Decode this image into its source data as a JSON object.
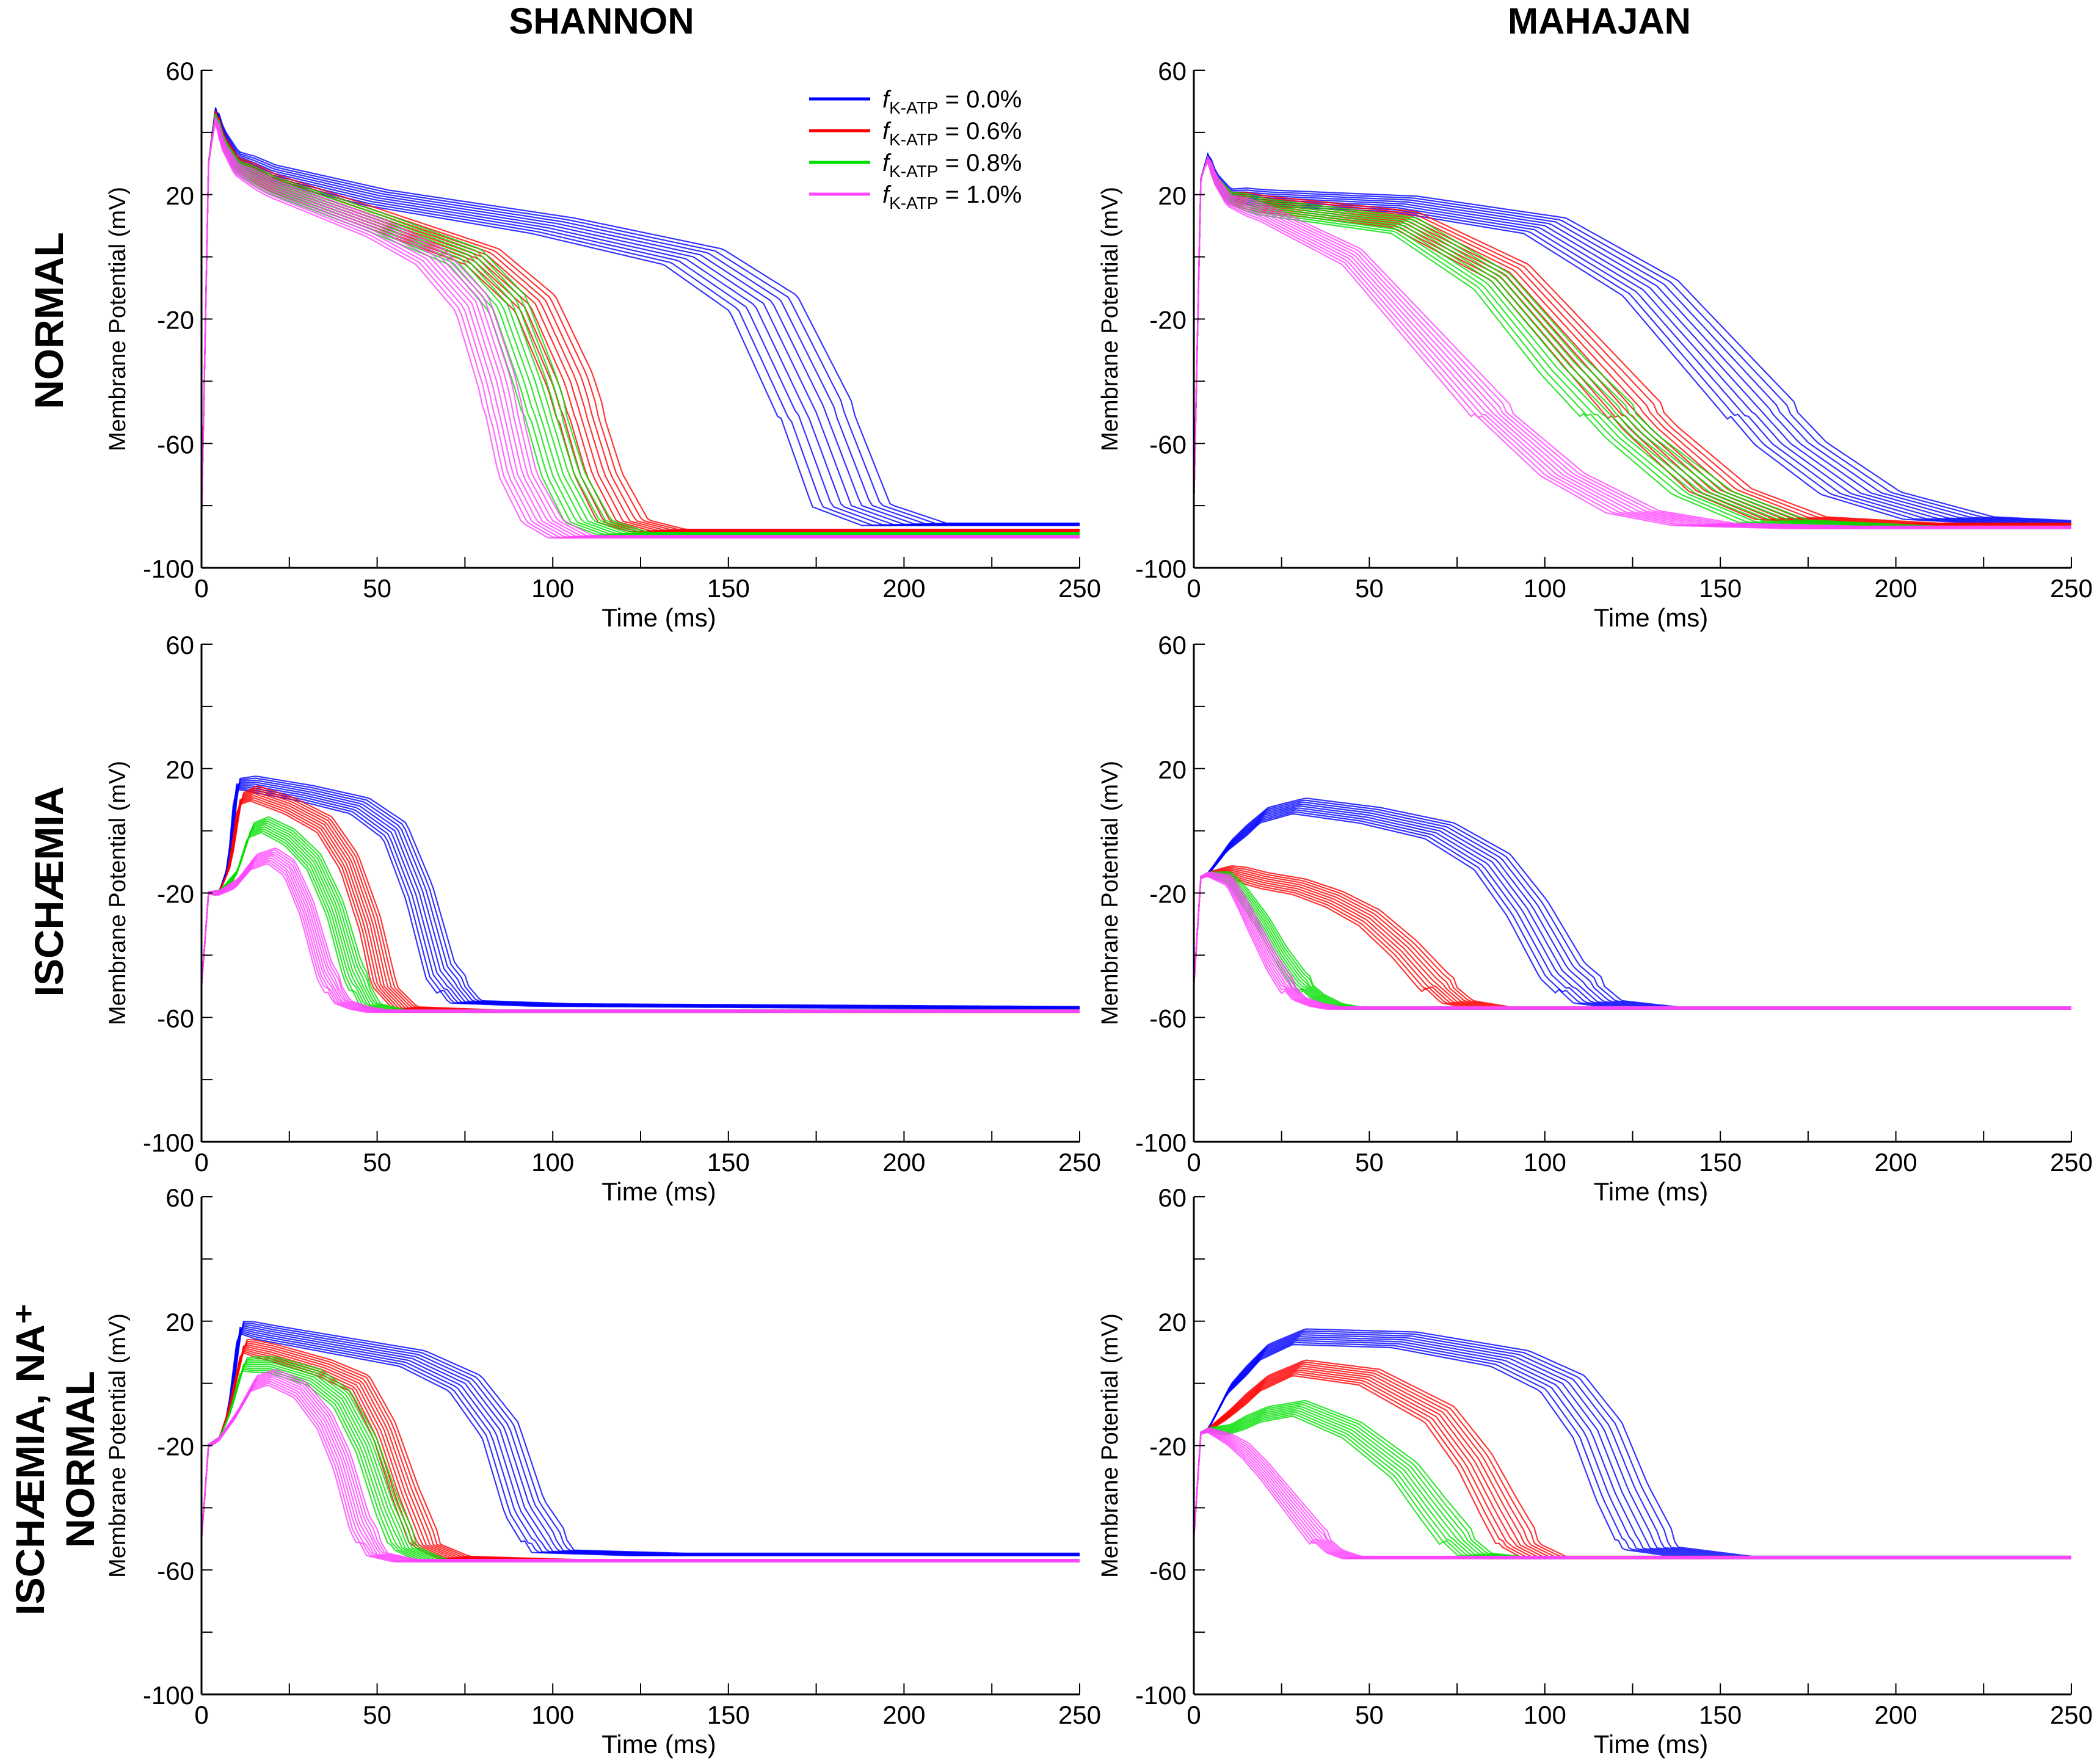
{
  "columns": [
    "SHANNON",
    "MAHAJAN"
  ],
  "rows": [
    "NORMAL",
    "ISCHÆMIA",
    "ISCHÆMIA, NA⁺ NORMAL"
  ],
  "legend": [
    {
      "prefix": "f",
      "sub": "K-ATP",
      "suffix": " = 0.0%",
      "color": "#0000ff"
    },
    {
      "prefix": "f",
      "sub": "K-ATP",
      "suffix": " = 0.6%",
      "color": "#ff0000"
    },
    {
      "prefix": "f",
      "sub": "K-ATP",
      "suffix": " = 0.8%",
      "color": "#00e000"
    },
    {
      "prefix": "f",
      "sub": "K-ATP",
      "suffix": " = 1.0%",
      "color": "#ff44ff"
    }
  ],
  "chart_data": [
    {
      "panel": "SHANNON / NORMAL",
      "type": "line",
      "xlabel": "Time (ms)",
      "ylabel": "Membrane Potential (mV)",
      "xlim": [
        0,
        250
      ],
      "ylim": [
        -100,
        60
      ],
      "xticks": [
        0,
        50,
        100,
        150,
        200,
        250
      ],
      "yticks": [
        -100,
        -60,
        -20,
        20,
        60
      ],
      "series": [
        {
          "name": "f K-ATP = 0.0%",
          "color": "#0000ff",
          "x": [
            0,
            2,
            4,
            6,
            10,
            20,
            50,
            100,
            140,
            160,
            175,
            185,
            200,
            250
          ],
          "y": [
            -85,
            30,
            48,
            40,
            32,
            27,
            19,
            10,
            0,
            -15,
            -50,
            -80,
            -86,
            -86
          ]
        },
        {
          "name": "f K-ATP = 0.6%",
          "color": "#ff0000",
          "x": [
            0,
            2,
            4,
            6,
            10,
            20,
            50,
            80,
            95,
            105,
            113,
            120,
            130,
            250
          ],
          "y": [
            -85,
            30,
            47,
            38,
            30,
            24,
            12,
            0,
            -15,
            -40,
            -70,
            -85,
            -88,
            -88
          ]
        },
        {
          "name": "f K-ATP = 0.8%",
          "color": "#00e000",
          "x": [
            0,
            2,
            4,
            6,
            10,
            20,
            50,
            75,
            87,
            95,
            103,
            110,
            120,
            250
          ],
          "y": [
            -85,
            30,
            46,
            37,
            29,
            23,
            11,
            0,
            -15,
            -40,
            -70,
            -85,
            -89,
            -89
          ]
        },
        {
          "name": "f K-ATP = 1.0%",
          "color": "#ff44ff",
          "x": [
            0,
            2,
            4,
            6,
            10,
            20,
            50,
            65,
            77,
            84,
            90,
            97,
            105,
            250
          ],
          "y": [
            -85,
            30,
            45,
            36,
            28,
            22,
            9,
            0,
            -15,
            -40,
            -70,
            -85,
            -90,
            -90
          ]
        }
      ]
    },
    {
      "panel": "MAHAJAN / NORMAL",
      "type": "line",
      "xlabel": "Time (ms)",
      "ylabel": "Membrane Potential (mV)",
      "xlim": [
        0,
        250
      ],
      "ylim": [
        -100,
        60
      ],
      "xticks": [
        0,
        50,
        100,
        150,
        200,
        250
      ],
      "yticks": [
        -100,
        -60,
        -20,
        20,
        60
      ],
      "series": [
        {
          "name": "f K-ATP = 0.0%",
          "color": "#0000ff",
          "x": [
            0,
            2,
            4,
            6,
            10,
            20,
            60,
            100,
            130,
            150,
            170,
            190,
            215,
            250
          ],
          "y": [
            -80,
            25,
            33,
            26,
            20,
            19,
            17,
            10,
            -10,
            -35,
            -60,
            -76,
            -84,
            -86
          ]
        },
        {
          "name": "f K-ATP = 0.6%",
          "color": "#ff0000",
          "x": [
            0,
            2,
            4,
            6,
            10,
            20,
            60,
            90,
            110,
            130,
            150,
            170,
            200,
            250
          ],
          "y": [
            -80,
            25,
            32,
            25,
            19,
            17,
            12,
            -5,
            -30,
            -55,
            -75,
            -84,
            -86,
            -86
          ]
        },
        {
          "name": "f K-ATP = 0.8%",
          "color": "#00e000",
          "x": [
            0,
            2,
            4,
            6,
            10,
            20,
            60,
            85,
            105,
            125,
            145,
            165,
            200,
            250
          ],
          "y": [
            -80,
            25,
            32,
            25,
            19,
            16,
            10,
            -8,
            -35,
            -58,
            -76,
            -85,
            -87,
            -87
          ]
        },
        {
          "name": "f K-ATP = 1.0%",
          "color": "#ff44ff",
          "x": [
            0,
            2,
            4,
            6,
            10,
            20,
            45,
            65,
            85,
            105,
            125,
            145,
            180,
            250
          ],
          "y": [
            -80,
            25,
            32,
            25,
            18,
            14,
            0,
            -25,
            -50,
            -70,
            -82,
            -86,
            -87,
            -87
          ]
        }
      ]
    },
    {
      "panel": "SHANNON / ISCHÆMIA",
      "type": "line",
      "xlabel": "Time (ms)",
      "ylabel": "Membrane Potential (mV)",
      "xlim": [
        0,
        250
      ],
      "ylim": [
        -100,
        60
      ],
      "xticks": [
        0,
        50,
        100,
        150,
        200,
        250
      ],
      "yticks": [
        -100,
        -60,
        -20,
        20,
        60
      ],
      "series": [
        {
          "name": "f K-ATP = 0.0%",
          "color": "#0000ff",
          "x": [
            0,
            2,
            5,
            8,
            10,
            15,
            30,
            45,
            55,
            62,
            68,
            75,
            100,
            250
          ],
          "y": [
            -50,
            -20,
            -20,
            -10,
            15,
            15,
            12,
            8,
            0,
            -20,
            -45,
            -55,
            -56,
            -57
          ]
        },
        {
          "name": "f K-ATP = 0.6%",
          "color": "#ff0000",
          "x": [
            0,
            2,
            5,
            8,
            11,
            15,
            25,
            35,
            42,
            48,
            52,
            58,
            80,
            250
          ],
          "y": [
            -50,
            -20,
            -20,
            -12,
            10,
            12,
            8,
            2,
            -10,
            -30,
            -50,
            -57,
            -58,
            -58
          ]
        },
        {
          "name": "f K-ATP = 0.8%",
          "color": "#00e000",
          "x": [
            0,
            2,
            5,
            10,
            14,
            18,
            25,
            32,
            38,
            43,
            48,
            55,
            80,
            250
          ],
          "y": [
            -50,
            -20,
            -20,
            -14,
            0,
            2,
            -2,
            -10,
            -25,
            -45,
            -56,
            -58,
            -58,
            -58
          ]
        },
        {
          "name": "f K-ATP = 1.0%",
          "color": "#ff44ff",
          "x": [
            0,
            2,
            5,
            10,
            15,
            20,
            25,
            30,
            35,
            40,
            45,
            50,
            70,
            250
          ],
          "y": [
            -50,
            -20,
            -20,
            -17,
            -10,
            -8,
            -12,
            -25,
            -45,
            -55,
            -57,
            -58,
            -58,
            -58
          ]
        }
      ]
    },
    {
      "panel": "MAHAJAN / ISCHÆMIA",
      "type": "line",
      "xlabel": "Time (ms)",
      "ylabel": "Membrane Potential (mV)",
      "xlim": [
        0,
        250
      ],
      "ylim": [
        -100,
        60
      ],
      "xticks": [
        0,
        50,
        100,
        150,
        200,
        250
      ],
      "yticks": [
        -100,
        -60,
        -20,
        20,
        60
      ],
      "series": [
        {
          "name": "f K-ATP = 0.0%",
          "color": "#0000ff",
          "x": [
            0,
            2,
            4,
            10,
            20,
            30,
            50,
            70,
            85,
            95,
            105,
            115,
            130,
            250
          ],
          "y": [
            -50,
            -15,
            -14,
            -5,
            5,
            8,
            5,
            0,
            -10,
            -25,
            -45,
            -55,
            -57,
            -57
          ]
        },
        {
          "name": "f K-ATP = 0.6%",
          "color": "#ff0000",
          "x": [
            0,
            2,
            4,
            10,
            20,
            30,
            40,
            50,
            60,
            68,
            75,
            85,
            110,
            250
          ],
          "y": [
            -50,
            -15,
            -14,
            -13,
            -16,
            -18,
            -22,
            -28,
            -38,
            -48,
            -55,
            -57,
            -57,
            -57
          ]
        },
        {
          "name": "f K-ATP = 0.8%",
          "color": "#00e000",
          "x": [
            0,
            2,
            4,
            10,
            15,
            20,
            25,
            30,
            35,
            40,
            45,
            55,
            80,
            250
          ],
          "y": [
            -50,
            -15,
            -14,
            -15,
            -22,
            -30,
            -40,
            -48,
            -53,
            -56,
            -57,
            -57,
            -57,
            -57
          ]
        },
        {
          "name": "f K-ATP = 1.0%",
          "color": "#ff44ff",
          "x": [
            0,
            2,
            4,
            10,
            14,
            18,
            22,
            26,
            30,
            35,
            40,
            50,
            80,
            250
          ],
          "y": [
            -50,
            -15,
            -14,
            -16,
            -24,
            -33,
            -42,
            -49,
            -54,
            -56,
            -57,
            -57,
            -57,
            -57
          ]
        }
      ]
    },
    {
      "panel": "SHANNON / ISCHÆMIA, NA⁺ NORMAL",
      "type": "line",
      "xlabel": "Time (ms)",
      "ylabel": "Membrane Potential (mV)",
      "xlim": [
        0,
        250
      ],
      "ylim": [
        -100,
        60
      ],
      "xticks": [
        0,
        50,
        100,
        150,
        200,
        250
      ],
      "yticks": [
        -100,
        -60,
        -20,
        20,
        60
      ],
      "series": [
        {
          "name": "f K-ATP = 0.0%",
          "color": "#0000ff",
          "x": [
            0,
            2,
            5,
            8,
            11,
            20,
            40,
            60,
            75,
            85,
            92,
            100,
            130,
            250
          ],
          "y": [
            -50,
            -20,
            -18,
            -8,
            18,
            16,
            12,
            8,
            0,
            -15,
            -40,
            -54,
            -55,
            -55
          ]
        },
        {
          "name": "f K-ATP = 0.6%",
          "color": "#ff0000",
          "x": [
            0,
            2,
            5,
            8,
            12,
            20,
            35,
            45,
            52,
            58,
            64,
            72,
            100,
            250
          ],
          "y": [
            -50,
            -20,
            -18,
            -8,
            12,
            10,
            5,
            0,
            -15,
            -35,
            -52,
            -56,
            -57,
            -57
          ]
        },
        {
          "name": "f K-ATP = 0.8%",
          "color": "#00e000",
          "x": [
            0,
            2,
            5,
            8,
            12,
            20,
            32,
            40,
            47,
            53,
            58,
            66,
            100,
            250
          ],
          "y": [
            -50,
            -20,
            -18,
            -10,
            6,
            6,
            2,
            -5,
            -20,
            -40,
            -53,
            -57,
            -57,
            -57
          ]
        },
        {
          "name": "f K-ATP = 1.0%",
          "color": "#ff44ff",
          "x": [
            0,
            2,
            5,
            10,
            15,
            20,
            28,
            35,
            40,
            45,
            50,
            58,
            90,
            250
          ],
          "y": [
            -50,
            -20,
            -18,
            -10,
            0,
            2,
            -2,
            -12,
            -25,
            -45,
            -55,
            -57,
            -57,
            -57
          ]
        }
      ]
    },
    {
      "panel": "MAHAJAN / ISCHÆMIA, NA⁺ NORMAL",
      "type": "line",
      "xlabel": "Time (ms)",
      "ylabel": "Membrane Potential (mV)",
      "xlim": [
        0,
        250
      ],
      "ylim": [
        -100,
        60
      ],
      "xticks": [
        0,
        50,
        100,
        150,
        200,
        250
      ],
      "yticks": [
        -100,
        -60,
        -20,
        20,
        60
      ],
      "series": [
        {
          "name": "f K-ATP = 0.0%",
          "color": "#0000ff",
          "x": [
            0,
            2,
            4,
            10,
            20,
            30,
            60,
            90,
            105,
            115,
            122,
            130,
            150,
            250
          ],
          "y": [
            -50,
            -16,
            -15,
            -2,
            10,
            15,
            14,
            8,
            0,
            -15,
            -35,
            -53,
            -56,
            -56
          ]
        },
        {
          "name": "f K-ATP = 0.6%",
          "color": "#ff0000",
          "x": [
            0,
            2,
            4,
            10,
            20,
            30,
            50,
            70,
            80,
            87,
            93,
            100,
            130,
            250
          ],
          "y": [
            -50,
            -16,
            -15,
            -10,
            0,
            5,
            2,
            -10,
            -25,
            -40,
            -52,
            -56,
            -56,
            -56
          ]
        },
        {
          "name": "f K-ATP = 0.8%",
          "color": "#00e000",
          "x": [
            0,
            2,
            4,
            10,
            20,
            30,
            45,
            60,
            68,
            75,
            80,
            88,
            120,
            250
          ],
          "y": [
            -50,
            -16,
            -15,
            -15,
            -10,
            -8,
            -15,
            -28,
            -40,
            -50,
            -55,
            -56,
            -56,
            -56
          ]
        },
        {
          "name": "f K-ATP = 1.0%",
          "color": "#ff44ff",
          "x": [
            0,
            2,
            4,
            10,
            15,
            20,
            25,
            30,
            35,
            40,
            45,
            55,
            90,
            250
          ],
          "y": [
            -50,
            -16,
            -15,
            -18,
            -22,
            -28,
            -35,
            -42,
            -49,
            -54,
            -56,
            -56,
            -56,
            -56
          ]
        }
      ]
    }
  ]
}
